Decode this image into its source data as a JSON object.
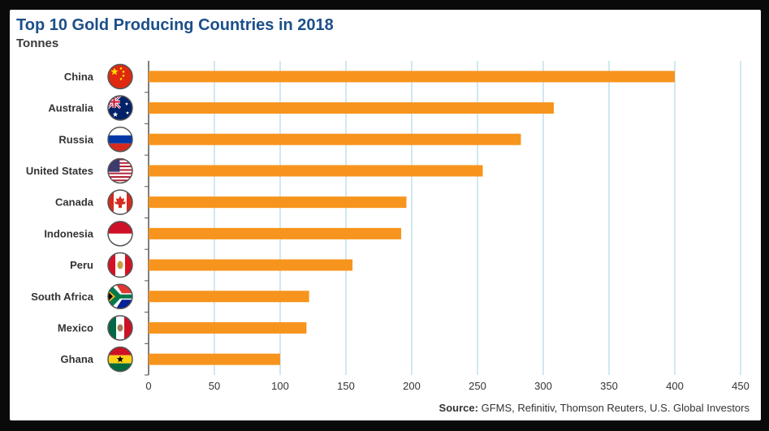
{
  "title": "Top 10 Gold Producing Countries in 2018",
  "subtitle": "Tonnes",
  "source_label": "Source:",
  "source_text": "GFMS, Refinitiv, Thomson Reuters, U.S. Global Investors",
  "colors": {
    "bar": "#f7941d",
    "grid": "#bfe0ee",
    "axis": "#555555",
    "title": "#1b4f8a"
  },
  "chart_data": {
    "type": "bar",
    "orientation": "horizontal",
    "title": "Top 10 Gold Producing Countries in 2018",
    "subtitle": "Tonnes",
    "categories": [
      "China",
      "Australia",
      "Russia",
      "United States",
      "Canada",
      "Indonesia",
      "Peru",
      "South Africa",
      "Mexico",
      "Ghana"
    ],
    "values": [
      400,
      308,
      283,
      254,
      196,
      192,
      155,
      122,
      120,
      100
    ],
    "flags": [
      "china-flag-icon",
      "australia-flag-icon",
      "russia-flag-icon",
      "united-states-flag-icon",
      "canada-flag-icon",
      "indonesia-flag-icon",
      "peru-flag-icon",
      "south-africa-flag-icon",
      "mexico-flag-icon",
      "ghana-flag-icon"
    ],
    "xlim": [
      0,
      450
    ],
    "xticks": [
      0,
      50,
      100,
      150,
      200,
      250,
      300,
      350,
      400,
      450
    ],
    "grid": true
  }
}
